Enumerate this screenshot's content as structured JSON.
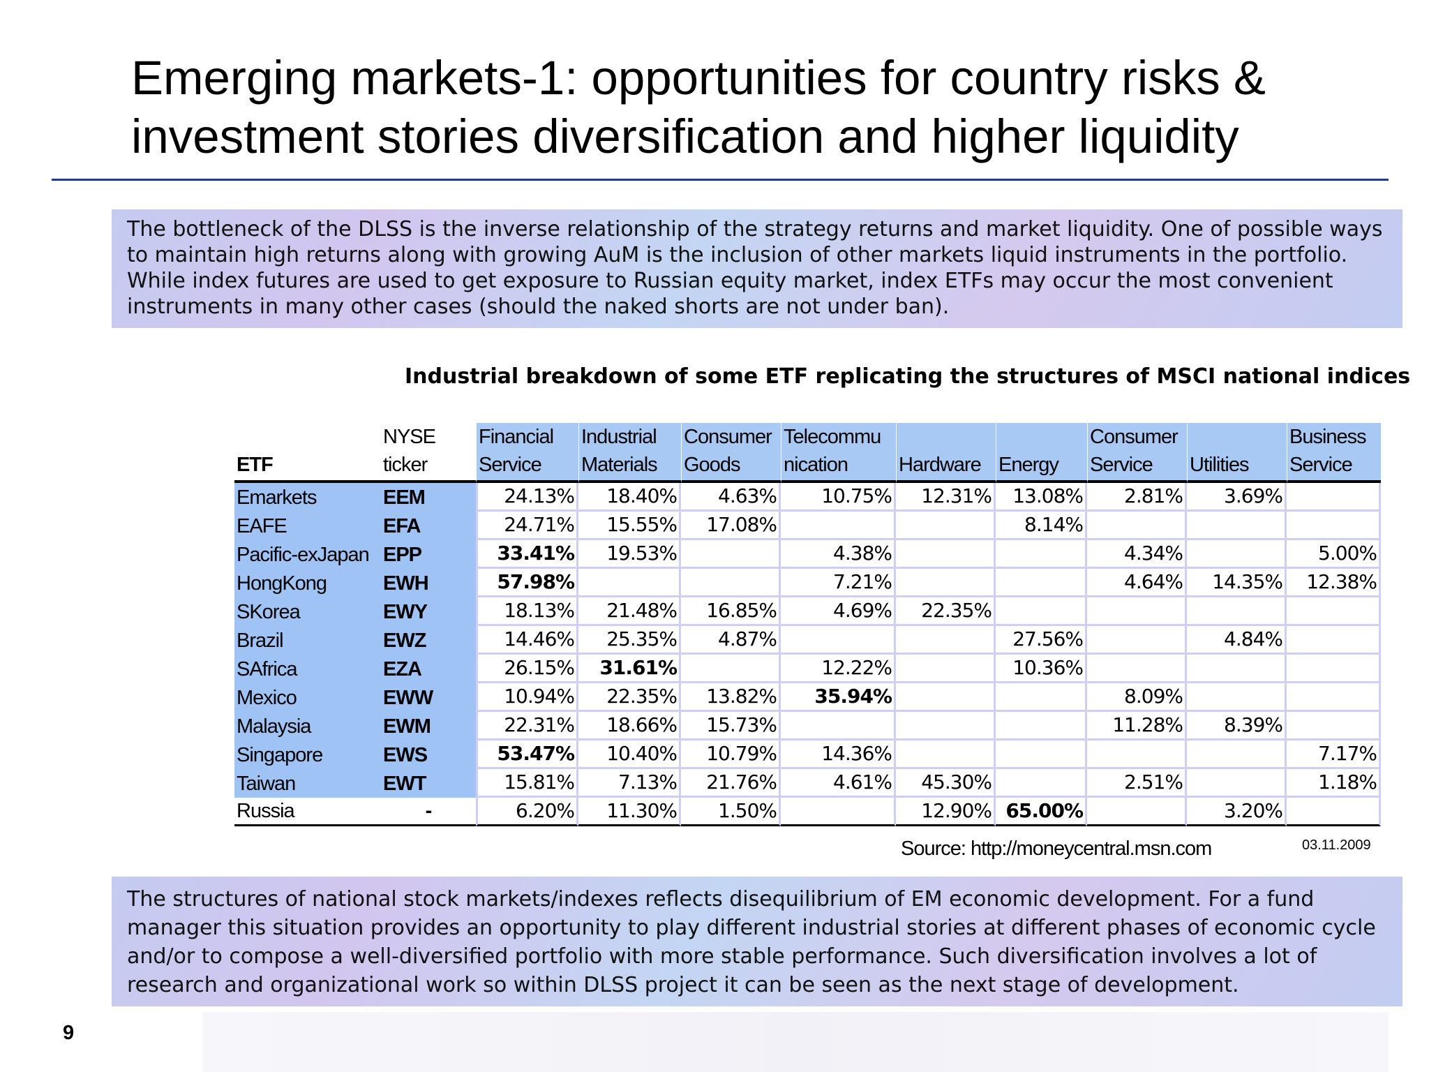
{
  "slide": {
    "title_line1": "Emerging markets-1:  opportunities for country risks &",
    "title_line2": "investment stories diversification and higher liquidity",
    "intro_text": "The bottleneck of the DLSS is the inverse relationship of the strategy returns and market liquidity. One of possible ways to maintain high returns along with growing AuM is the inclusion of other markets liquid instruments in the portfolio. While index futures are used to get exposure to Russian equity market, index ETFs may occur the most convenient instruments in many other cases (should the naked shorts are not under ban).",
    "table_caption": "Industrial breakdown of some ETF replicating the structures of MSCI national indices",
    "conclusion_text": "The structures of national stock markets/indexes reflects disequilibrium of EM economic development. For a fund manager this situation provides an opportunity to play different industrial stories at different phases of economic cycle and/or to compose a well-diversified portfolio with more stable performance. Such diversification involves a lot of research and organizational work so within DLSS project it can be seen as the next stage of development.",
    "source": "Source: http://moneycentral.msn.com",
    "date": "03.11.2009",
    "page_number": "9"
  },
  "table": {
    "headers": {
      "etf": "ETF",
      "ticker_l1": "NYSE",
      "ticker_l2": "ticker",
      "sectors": [
        {
          "l1": "Financial",
          "l2": "Service"
        },
        {
          "l1": "Industrial",
          "l2": "Materials"
        },
        {
          "l1": "Consumer",
          "l2": "Goods"
        },
        {
          "l1": "Telecommu",
          "l2": "nication"
        },
        {
          "l1": "",
          "l2": "Hardware"
        },
        {
          "l1": "",
          "l2": "Energy"
        },
        {
          "l1": "Consumer",
          "l2": "Service"
        },
        {
          "l1": "",
          "l2": "Utilities"
        },
        {
          "l1": "Business",
          "l2": "Service"
        }
      ]
    },
    "rows": [
      {
        "etf": "Emarkets",
        "ticker": "EEM",
        "v": [
          "24.13%",
          "18.40%",
          "4.63%",
          "10.75%",
          "12.31%",
          "13.08%",
          "2.81%",
          "3.69%",
          ""
        ]
      },
      {
        "etf": "EAFE",
        "ticker": "EFA",
        "v": [
          "24.71%",
          "15.55%",
          "17.08%",
          "",
          "",
          "8.14%",
          "",
          "",
          ""
        ]
      },
      {
        "etf": "Pacific-exJapan",
        "ticker": "EPP",
        "v": [
          "33.41%",
          "19.53%",
          "",
          "4.38%",
          "",
          "",
          "4.34%",
          "",
          "5.00%"
        ]
      },
      {
        "etf": "HongKong",
        "ticker": "EWH",
        "v": [
          "57.98%",
          "",
          "",
          "7.21%",
          "",
          "",
          "4.64%",
          "14.35%",
          "12.38%"
        ]
      },
      {
        "etf": "SKorea",
        "ticker": "EWY",
        "v": [
          "18.13%",
          "21.48%",
          "16.85%",
          "4.69%",
          "22.35%",
          "",
          "",
          "",
          ""
        ]
      },
      {
        "etf": "Brazil",
        "ticker": "EWZ",
        "v": [
          "14.46%",
          "25.35%",
          "4.87%",
          "",
          "",
          "27.56%",
          "",
          "4.84%",
          ""
        ]
      },
      {
        "etf": "SAfrica",
        "ticker": "EZA",
        "v": [
          "26.15%",
          "31.61%",
          "",
          "12.22%",
          "",
          "10.36%",
          "",
          "",
          ""
        ]
      },
      {
        "etf": "Mexico",
        "ticker": "EWW",
        "v": [
          "10.94%",
          "22.35%",
          "13.82%",
          "35.94%",
          "",
          "",
          "8.09%",
          "",
          ""
        ]
      },
      {
        "etf": "Malaysia",
        "ticker": "EWM",
        "v": [
          "22.31%",
          "18.66%",
          "15.73%",
          "",
          "",
          "",
          "11.28%",
          "8.39%",
          ""
        ]
      },
      {
        "etf": "Singapore",
        "ticker": "EWS",
        "v": [
          "53.47%",
          "10.40%",
          "10.79%",
          "14.36%",
          "",
          "",
          "",
          "",
          "7.17%"
        ]
      },
      {
        "etf": "Taiwan",
        "ticker": "EWT",
        "v": [
          "15.81%",
          "7.13%",
          "21.76%",
          "4.61%",
          "45.30%",
          "",
          "2.51%",
          "",
          "1.18%"
        ]
      },
      {
        "etf": "Russia",
        "ticker": "-",
        "v": [
          "6.20%",
          "11.30%",
          "1.50%",
          "",
          "12.90%",
          "65.00%",
          "",
          "3.20%",
          ""
        ]
      }
    ]
  }
}
